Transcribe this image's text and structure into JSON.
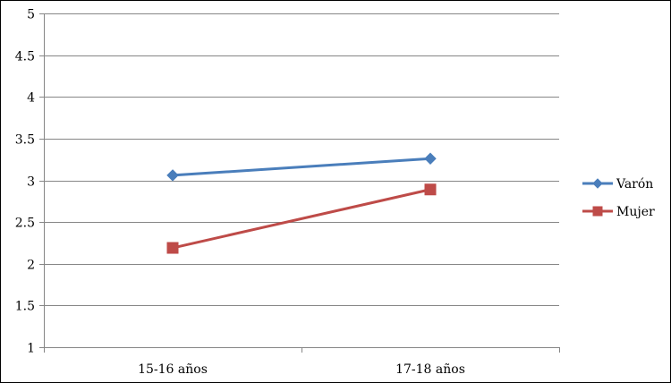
{
  "chart_data": {
    "type": "line",
    "categories": [
      "15-16 años",
      "17-18 años"
    ],
    "series": [
      {
        "name": "Varón",
        "values": [
          3.06,
          3.26
        ],
        "color": "#4A7EBB",
        "marker": "diamond"
      },
      {
        "name": "Mujer",
        "values": [
          2.19,
          2.89
        ],
        "color": "#BE4B48",
        "marker": "square"
      }
    ],
    "yticks": [
      "1",
      "1.5",
      "2",
      "2.5",
      "3",
      "3.5",
      "4",
      "4.5",
      "5"
    ],
    "ylim": [
      1,
      5
    ],
    "grid": true,
    "legend_position": "right",
    "title": "",
    "xlabel": "",
    "ylabel": ""
  }
}
